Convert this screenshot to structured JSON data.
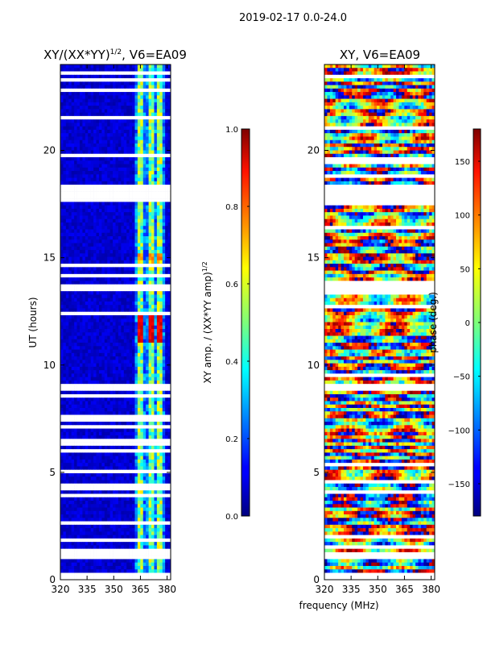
{
  "chart_data": {
    "type": "heatmap",
    "suptitle": "2019-02-17 0.0-24.0",
    "xlabel": "frequency (MHz)",
    "panels": [
      {
        "id": "amp",
        "title": "XY/(XX*YY)",
        "title_exp": "1/2",
        "title_suffix": ", V6=EA09",
        "ylabel": "UT (hours)",
        "xlim": [
          320,
          382
        ],
        "ylim": [
          0,
          24
        ],
        "xticks": [
          320,
          335,
          350,
          365,
          380
        ],
        "yticks": [
          0,
          5,
          10,
          15,
          20
        ],
        "colorscale": "jet",
        "colorbar": {
          "label": "XY amp. / (XX*YY amp)",
          "label_exp": "1/2",
          "range": [
            0.0,
            1.0
          ],
          "ticks": [
            "0.0",
            "0.2",
            "0.4",
            "0.6",
            "0.8",
            "1.0"
          ]
        }
      },
      {
        "id": "phase",
        "title": "XY, V6=EA09",
        "ylabel": "",
        "xlim": [
          320,
          382
        ],
        "ylim": [
          0,
          24
        ],
        "xticks": [
          320,
          335,
          350,
          365,
          380
        ],
        "yticks": [
          0,
          5,
          10,
          15,
          20
        ],
        "colorscale": "jet",
        "colorbar": {
          "label": "phase (deg.)",
          "range": [
            -180,
            180
          ],
          "ticks": [
            "−150",
            "−100",
            "−50",
            "0",
            "50",
            "100",
            "150"
          ]
        }
      }
    ]
  }
}
